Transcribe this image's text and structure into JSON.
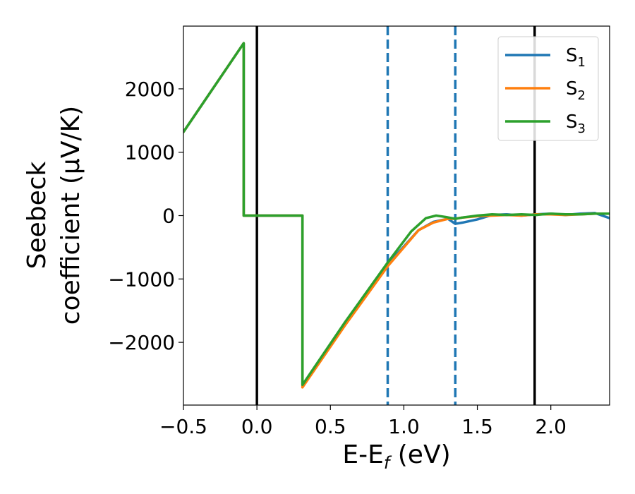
{
  "chart_data": {
    "type": "line",
    "xlabel_main": "E-E",
    "xlabel_sub": "f",
    "xlabel_unit": " (eV)",
    "ylabel_line1": "Seebeck",
    "ylabel_line2": "coefficient  (μV/K)",
    "xlim": [
      -0.5,
      2.4
    ],
    "ylim": [
      -2990,
      2990
    ],
    "x_ticks": [
      -0.5,
      0.0,
      0.5,
      1.0,
      1.5,
      2.0
    ],
    "x_tick_labels": [
      "−0.5",
      "0.0",
      "0.5",
      "1.0",
      "1.5",
      "2.0"
    ],
    "y_ticks": [
      2000,
      1000,
      0,
      -1000,
      -2000
    ],
    "y_tick_labels": [
      "2000",
      "1000",
      "0",
      "−1000",
      "−2000"
    ],
    "grid": false,
    "legend_position": "top-right",
    "vlines": [
      {
        "x": 0.0,
        "style": "solid",
        "color": "#000000"
      },
      {
        "x": 1.89,
        "style": "solid",
        "color": "#000000"
      },
      {
        "x": 0.89,
        "style": "dashed",
        "color": "#1f77b4"
      },
      {
        "x": 1.35,
        "style": "dashed",
        "color": "#1f77b4"
      }
    ],
    "series": [
      {
        "name": "S",
        "sub": "1",
        "color": "#1f77b4",
        "x": [
          -0.5,
          -0.09,
          -0.09,
          0.31,
          0.31,
          0.6,
          0.89,
          1.1,
          1.2,
          1.3,
          1.35,
          1.4,
          1.5,
          1.6,
          1.7,
          1.8,
          1.9,
          2.0,
          2.1,
          2.2,
          2.3,
          2.4
        ],
        "y": [
          1320,
          2720,
          0,
          0,
          -2680,
          -1700,
          -770,
          -230,
          -100,
          -50,
          -130,
          -110,
          -60,
          10,
          20,
          0,
          20,
          30,
          10,
          30,
          40,
          -40
        ]
      },
      {
        "name": "S",
        "sub": "2",
        "color": "#ff7f0e",
        "x": [
          -0.5,
          -0.09,
          -0.09,
          0.31,
          0.31,
          0.6,
          0.89,
          1.1,
          1.2,
          1.3,
          1.35,
          1.4,
          1.5,
          1.6,
          1.7,
          1.8,
          1.9,
          2.0,
          2.1,
          2.2,
          2.3,
          2.4
        ],
        "y": [
          1320,
          2720,
          0,
          0,
          -2710,
          -1730,
          -800,
          -230,
          -110,
          -50,
          -50,
          -30,
          -10,
          0,
          10,
          0,
          20,
          20,
          10,
          20,
          30,
          30
        ]
      },
      {
        "name": "S",
        "sub": "3",
        "color": "#2ca02c",
        "x": [
          -0.5,
          -0.09,
          -0.09,
          0.31,
          0.31,
          0.6,
          0.89,
          1.05,
          1.15,
          1.22,
          1.28,
          1.35,
          1.4,
          1.5,
          1.6,
          1.7,
          1.8,
          1.9,
          2.0,
          2.1,
          2.2,
          2.3,
          2.4
        ],
        "y": [
          1320,
          2720,
          0,
          0,
          -2670,
          -1680,
          -740,
          -250,
          -40,
          0,
          -20,
          -50,
          -30,
          0,
          20,
          10,
          20,
          10,
          30,
          20,
          20,
          30,
          30
        ]
      }
    ]
  }
}
